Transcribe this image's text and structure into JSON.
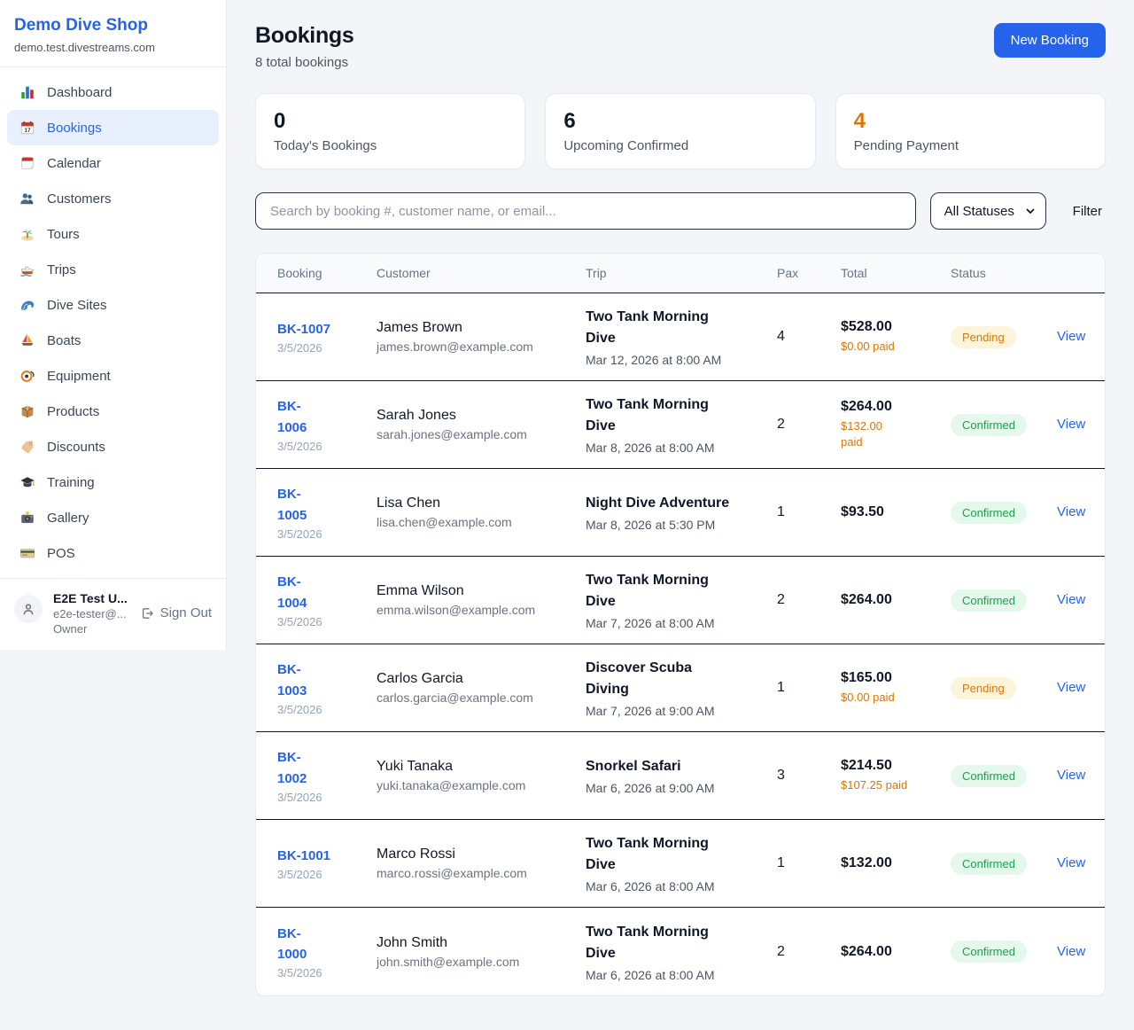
{
  "sidebar": {
    "brand": {
      "name": "Demo Dive Shop",
      "domain": "demo.test.divestreams.com"
    },
    "items": [
      {
        "label": "Dashboard",
        "icon": "dashboard-icon",
        "active": false
      },
      {
        "label": "Bookings",
        "icon": "bookings-calendar-icon",
        "active": true
      },
      {
        "label": "Calendar",
        "icon": "calendar-icon",
        "active": false
      },
      {
        "label": "Customers",
        "icon": "customers-icon",
        "active": false
      },
      {
        "label": "Tours",
        "icon": "tours-island-icon",
        "active": false
      },
      {
        "label": "Trips",
        "icon": "trips-boat-icon",
        "active": false
      },
      {
        "label": "Dive Sites",
        "icon": "dive-sites-wave-icon",
        "active": false
      },
      {
        "label": "Boats",
        "icon": "boats-sailboat-icon",
        "active": false
      },
      {
        "label": "Equipment",
        "icon": "equipment-mask-icon",
        "active": false
      },
      {
        "label": "Products",
        "icon": "products-box-icon",
        "active": false
      },
      {
        "label": "Discounts",
        "icon": "discounts-tag-icon",
        "active": false
      },
      {
        "label": "Training",
        "icon": "training-cap-icon",
        "active": false
      },
      {
        "label": "Gallery",
        "icon": "gallery-camera-icon",
        "active": false
      },
      {
        "label": "POS",
        "icon": "pos-card-icon",
        "active": false
      }
    ],
    "user": {
      "name": "E2E Test U...",
      "email": "e2e-tester@...",
      "role": "Owner",
      "sign_out_label": "Sign Out"
    }
  },
  "header": {
    "title": "Bookings",
    "subtitle": "8 total bookings",
    "new_booking_label": "New Booking"
  },
  "stats": [
    {
      "value": "0",
      "label": "Today's Bookings",
      "value_color": "#101828"
    },
    {
      "value": "6",
      "label": "Upcoming Confirmed",
      "value_color": "#101828"
    },
    {
      "value": "4",
      "label": "Pending Payment",
      "value_color": "#d97706"
    }
  ],
  "filters": {
    "search_placeholder": "Search by booking #, customer name, or email...",
    "status_selected": "All Statuses",
    "filter_label": "Filter"
  },
  "table": {
    "columns": [
      "Booking",
      "Customer",
      "Trip",
      "Pax",
      "Total",
      "Status",
      ""
    ],
    "rows": [
      {
        "id": "BK-1007",
        "date": "3/5/2026",
        "customer_name": "James Brown",
        "customer_email": "james.brown@example.com",
        "trip_name": "Two Tank Morning\nDive",
        "trip_datetime": "Mar 12, 2026 at 8:00 AM",
        "pax": "4",
        "total": "$528.00",
        "paid": "$0.00 paid",
        "status": "Pending",
        "action": "View"
      },
      {
        "id": "BK-\n1006",
        "date": "3/5/2026",
        "customer_name": "Sarah Jones",
        "customer_email": "sarah.jones@example.com",
        "trip_name": "Two Tank Morning\nDive",
        "trip_datetime": "Mar 8, 2026 at 8:00 AM",
        "pax": "2",
        "total": "$264.00",
        "paid": "$132.00\npaid",
        "status": "Confirmed",
        "action": "View"
      },
      {
        "id": "BK-\n1005",
        "date": "3/5/2026",
        "customer_name": "Lisa Chen",
        "customer_email": "lisa.chen@example.com",
        "trip_name": "Night Dive Adventure",
        "trip_datetime": "Mar 8, 2026 at 5:30 PM",
        "pax": "1",
        "total": "$93.50",
        "paid": null,
        "status": "Confirmed",
        "action": "View"
      },
      {
        "id": "BK-\n1004",
        "date": "3/5/2026",
        "customer_name": "Emma Wilson",
        "customer_email": "emma.wilson@example.com",
        "trip_name": "Two Tank Morning\nDive",
        "trip_datetime": "Mar 7, 2026 at 8:00 AM",
        "pax": "2",
        "total": "$264.00",
        "paid": null,
        "status": "Confirmed",
        "action": "View"
      },
      {
        "id": "BK-\n1003",
        "date": "3/5/2026",
        "customer_name": "Carlos Garcia",
        "customer_email": "carlos.garcia@example.com",
        "trip_name": "Discover Scuba\nDiving",
        "trip_datetime": "Mar 7, 2026 at 9:00 AM",
        "pax": "1",
        "total": "$165.00",
        "paid": "$0.00 paid",
        "status": "Pending",
        "action": "View"
      },
      {
        "id": "BK-\n1002",
        "date": "3/5/2026",
        "customer_name": "Yuki Tanaka",
        "customer_email": "yuki.tanaka@example.com",
        "trip_name": "Snorkel Safari",
        "trip_datetime": "Mar 6, 2026 at 9:00 AM",
        "pax": "3",
        "total": "$214.50",
        "paid": "$107.25 paid",
        "status": "Confirmed",
        "action": "View"
      },
      {
        "id": "BK-1001",
        "date": "3/5/2026",
        "customer_name": "Marco Rossi",
        "customer_email": "marco.rossi@example.com",
        "trip_name": "Two Tank Morning\nDive",
        "trip_datetime": "Mar 6, 2026 at 8:00 AM",
        "pax": "1",
        "total": "$132.00",
        "paid": null,
        "status": "Confirmed",
        "action": "View"
      },
      {
        "id": "BK-\n1000",
        "date": "3/5/2026",
        "customer_name": "John Smith",
        "customer_email": "john.smith@example.com",
        "trip_name": "Two Tank Morning\nDive",
        "trip_datetime": "Mar 6, 2026 at 8:00 AM",
        "pax": "2",
        "total": "$264.00",
        "paid": null,
        "status": "Confirmed",
        "action": "View"
      }
    ]
  },
  "colors": {
    "accent_blue": "#2563eb",
    "pending_text": "#d97706",
    "pending_bg": "#fdf4dc",
    "confirmed_text": "#17a34a",
    "confirmed_bg": "#e4f8ec",
    "row_border": "#111827",
    "page_bg": "#f4f5f8"
  }
}
